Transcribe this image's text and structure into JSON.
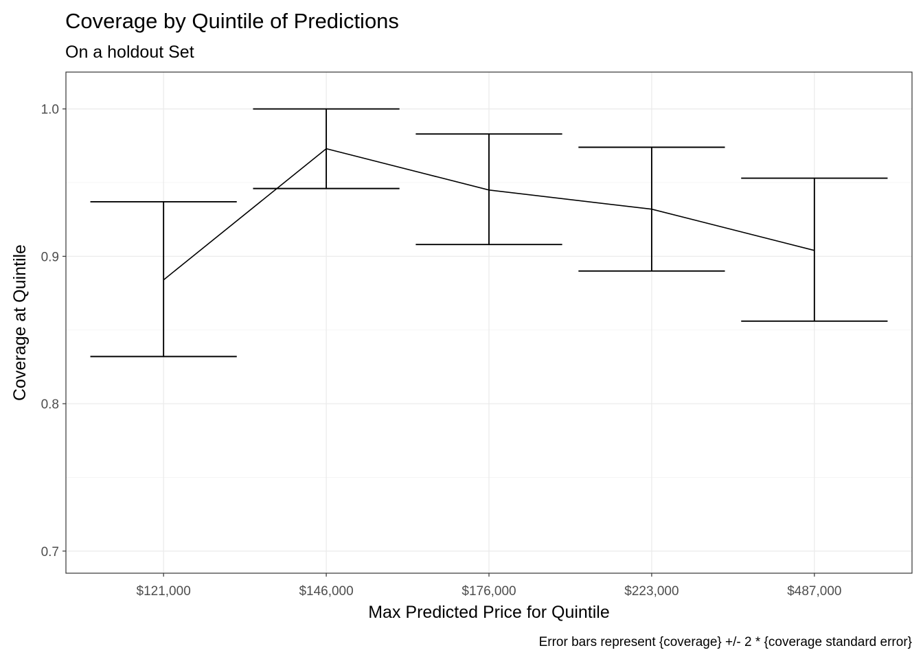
{
  "chart_data": {
    "type": "line",
    "title": "Coverage by Quintile of Predictions",
    "subtitle": "On a holdout Set",
    "xlabel": "Max Predicted Price for Quintile",
    "ylabel": "Coverage at Quintile",
    "caption": "Error bars represent {coverage} +/- 2 * {coverage standard error}",
    "categories": [
      "$121,000",
      "$146,000",
      "$176,000",
      "$223,000",
      "$487,000"
    ],
    "values": [
      0.884,
      0.973,
      0.945,
      0.932,
      0.904
    ],
    "error_low": [
      0.832,
      0.946,
      0.908,
      0.89,
      0.856
    ],
    "error_high": [
      0.937,
      1.0,
      0.983,
      0.974,
      0.953
    ],
    "ylim": [
      0.685,
      1.025
    ],
    "yticks": [
      0.7,
      0.8,
      0.9,
      1.0
    ],
    "ytick_labels": [
      "0.7",
      "0.8",
      "0.9",
      "1.0"
    ],
    "grid": true,
    "legend": "none"
  }
}
